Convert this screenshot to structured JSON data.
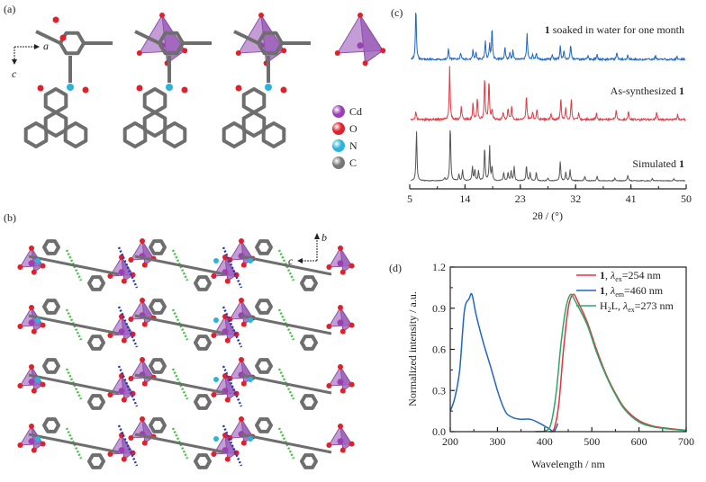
{
  "panels": {
    "a": {
      "label": "(a)",
      "axis_a": "a",
      "axis_c": "c",
      "legend": [
        {
          "symbol": "Cd",
          "color": "#9b3fb5"
        },
        {
          "symbol": "O",
          "color": "#e0202a"
        },
        {
          "symbol": "N",
          "color": "#2ab4dc"
        },
        {
          "symbol": "C",
          "color": "#777777"
        }
      ]
    },
    "b": {
      "label": "(b)",
      "axis_b": "b",
      "axis_c": "c"
    },
    "c": {
      "label": "(c)"
    },
    "d": {
      "label": "(d)"
    }
  },
  "chart_data": [
    {
      "type": "line",
      "panel": "c",
      "title": "",
      "xlabel": "2θ / (°)",
      "ylabel": "",
      "xlim": [
        5,
        50
      ],
      "xticks": [
        5,
        14,
        23,
        32,
        41,
        50
      ],
      "grid": false,
      "series": [
        {
          "name": "1 soaked in water for one month",
          "label_bold": "1",
          "label_rest": " soaked in water for one month",
          "color": "#1f66c4",
          "peaks": [
            [
              6.0,
              1.0
            ],
            [
              11.3,
              0.22
            ],
            [
              13.3,
              0.12
            ],
            [
              15.3,
              0.18
            ],
            [
              15.8,
              0.12
            ],
            [
              17.3,
              0.35
            ],
            [
              18.0,
              0.28
            ],
            [
              18.4,
              0.6
            ],
            [
              20.5,
              0.25
            ],
            [
              21.3,
              0.12
            ],
            [
              21.8,
              0.18
            ],
            [
              24.1,
              0.5
            ],
            [
              25.0,
              0.1
            ],
            [
              25.6,
              0.12
            ],
            [
              28.2,
              0.08
            ],
            [
              29.5,
              0.25
            ],
            [
              30.1,
              0.15
            ],
            [
              31.2,
              0.28
            ],
            [
              34.0,
              0.08
            ],
            [
              35.5,
              0.1
            ],
            [
              38.7,
              0.15
            ],
            [
              40.5,
              0.08
            ],
            [
              45.0,
              0.08
            ],
            [
              48.5,
              0.05
            ]
          ]
        },
        {
          "name": "As-synthesized 1",
          "label_bold": "1",
          "label_rest": "As-synthesized ",
          "color": "#e23a45",
          "peaks": [
            [
              6.0,
              0.15
            ],
            [
              11.5,
              1.0
            ],
            [
              13.4,
              0.25
            ],
            [
              15.3,
              0.3
            ],
            [
              16.0,
              0.4
            ],
            [
              17.2,
              0.78
            ],
            [
              17.9,
              0.72
            ],
            [
              18.4,
              0.2
            ],
            [
              20.2,
              0.15
            ],
            [
              21.0,
              0.2
            ],
            [
              21.6,
              0.25
            ],
            [
              24.0,
              0.45
            ],
            [
              25.0,
              0.15
            ],
            [
              25.7,
              0.18
            ],
            [
              28.0,
              0.12
            ],
            [
              29.6,
              0.4
            ],
            [
              30.4,
              0.2
            ],
            [
              31.3,
              0.38
            ],
            [
              32.5,
              0.12
            ],
            [
              35.4,
              0.12
            ],
            [
              38.6,
              0.18
            ],
            [
              40.6,
              0.15
            ],
            [
              45.2,
              0.15
            ],
            [
              48.6,
              0.1
            ]
          ]
        },
        {
          "name": "Simulated 1",
          "label_bold": "1",
          "label_rest": "Simulated ",
          "color": "#555555",
          "peaks": [
            [
              6.1,
              0.9
            ],
            [
              10.7,
              0.05
            ],
            [
              11.6,
              1.0
            ],
            [
              13.0,
              0.12
            ],
            [
              13.6,
              0.2
            ],
            [
              15.2,
              0.25
            ],
            [
              15.6,
              0.2
            ],
            [
              16.2,
              0.18
            ],
            [
              17.2,
              0.6
            ],
            [
              18.0,
              0.62
            ],
            [
              18.4,
              0.25
            ],
            [
              20.3,
              0.15
            ],
            [
              21.0,
              0.15
            ],
            [
              21.5,
              0.18
            ],
            [
              22.0,
              0.25
            ],
            [
              24.0,
              0.28
            ],
            [
              24.6,
              0.15
            ],
            [
              25.6,
              0.15
            ],
            [
              27.5,
              0.05
            ],
            [
              29.5,
              0.35
            ],
            [
              30.4,
              0.15
            ],
            [
              31.1,
              0.2
            ],
            [
              33.5,
              0.08
            ],
            [
              35.5,
              0.08
            ],
            [
              38.4,
              0.05
            ],
            [
              40.5,
              0.1
            ],
            [
              44.5,
              0.04
            ],
            [
              48.0,
              0.04
            ]
          ]
        }
      ]
    },
    {
      "type": "line",
      "panel": "d",
      "title": "",
      "xlabel": "Wavelength / nm",
      "ylabel": "Normalized intensity / a.u.",
      "xlim": [
        200,
        700
      ],
      "ylim": [
        0,
        1.2
      ],
      "xticks": [
        200,
        300,
        400,
        500,
        600,
        700
      ],
      "yticks": [
        "0.0",
        "0.3",
        "0.6",
        "0.9",
        "1.2"
      ],
      "grid": false,
      "legend_position": "top-right",
      "series": [
        {
          "name": "1, λex=254 nm",
          "prefix": "1",
          "mid": ", λ",
          "sub": "ex",
          "suffix": "=254 nm",
          "color": "#e8323c",
          "points": [
            [
              410,
              0
            ],
            [
              420,
              0.02
            ],
            [
              430,
              0.2
            ],
            [
              440,
              0.6
            ],
            [
              450,
              0.9
            ],
            [
              460,
              1.0
            ],
            [
              470,
              0.95
            ],
            [
              490,
              0.8
            ],
            [
              510,
              0.6
            ],
            [
              530,
              0.42
            ],
            [
              550,
              0.28
            ],
            [
              570,
              0.17
            ],
            [
              600,
              0.08
            ],
            [
              630,
              0.04
            ],
            [
              660,
              0.025
            ],
            [
              700,
              0.01
            ]
          ]
        },
        {
          "name": "1, λem=460 nm",
          "prefix": "1",
          "mid": ", λ",
          "sub": "em",
          "suffix": "=460 nm",
          "color": "#1f66c4",
          "points": [
            [
              200,
              0.15
            ],
            [
              210,
              0.25
            ],
            [
              220,
              0.45
            ],
            [
              230,
              0.88
            ],
            [
              240,
              0.97
            ],
            [
              246,
              1.0
            ],
            [
              255,
              0.85
            ],
            [
              270,
              0.65
            ],
            [
              285,
              0.48
            ],
            [
              300,
              0.3
            ],
            [
              310,
              0.2
            ],
            [
              320,
              0.13
            ],
            [
              335,
              0.1
            ],
            [
              350,
              0.09
            ],
            [
              370,
              0.09
            ],
            [
              390,
              0.06
            ],
            [
              410,
              0.02
            ],
            [
              418,
              0.0
            ],
            [
              422,
              0.01
            ],
            [
              428,
              0.06
            ]
          ]
        },
        {
          "name": "H2L, λex=273 nm",
          "prefix": "H",
          "h_sub": "2",
          "prefix2": "L",
          "mid": ", λ",
          "sub": "ex",
          "suffix": "=273 nm",
          "color": "#2aa76a",
          "points": [
            [
              380,
              0
            ],
            [
              405,
              0.01
            ],
            [
              415,
              0.08
            ],
            [
              425,
              0.3
            ],
            [
              435,
              0.65
            ],
            [
              445,
              0.9
            ],
            [
              455,
              1.0
            ],
            [
              465,
              0.95
            ],
            [
              490,
              0.78
            ],
            [
              510,
              0.58
            ],
            [
              530,
              0.41
            ],
            [
              550,
              0.27
            ],
            [
              570,
              0.16
            ],
            [
              600,
              0.07
            ],
            [
              630,
              0.035
            ],
            [
              660,
              0.02
            ],
            [
              700,
              0.008
            ]
          ]
        }
      ]
    }
  ]
}
